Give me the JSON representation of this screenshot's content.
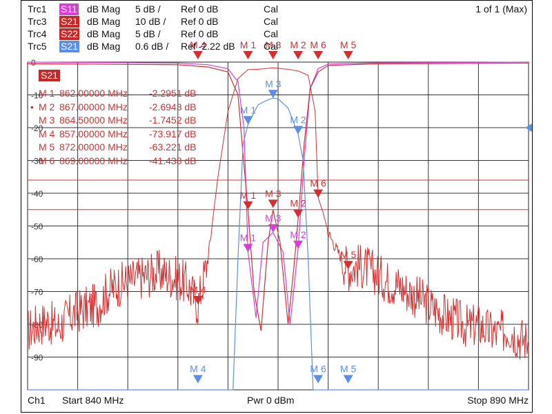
{
  "traces": [
    {
      "id": "Trc1",
      "param": "S11",
      "format": "dB Mag",
      "scale": "5 dB /",
      "ref": "Ref 0 dB",
      "cal": "Cal",
      "color": "#d63fd6"
    },
    {
      "id": "Trc3",
      "param": "S21",
      "format": "dB Mag",
      "scale": "10 dB /",
      "ref": "Ref 0 dB",
      "cal": "Cal",
      "color": "#c62828"
    },
    {
      "id": "Trc4",
      "param": "S22",
      "format": "dB Mag",
      "scale": "5 dB /",
      "ref": "Ref 0 dB",
      "cal": "Cal",
      "color": "#c62828"
    },
    {
      "id": "Trc5",
      "param": "S21",
      "format": "dB Mag",
      "scale": "0.6 dB /",
      "ref": "Ref -2.22 dB",
      "cal": "Cal",
      "color": "#5b8fe6"
    }
  ],
  "page_indicator": "1 of 1 (Max)",
  "active_trace_badge": "S21",
  "marker_table": [
    {
      "name": "M 1",
      "freq": "862.00000 MHz",
      "value": "-2.2951 dB",
      "active": false
    },
    {
      "name": "M 2",
      "freq": "867.00000 MHz",
      "value": "-2.6943 dB",
      "active": true
    },
    {
      "name": "M 3",
      "freq": "864.50000 MHz",
      "value": "-1.7452 dB",
      "active": false
    },
    {
      "name": "M 4",
      "freq": "857.00000 MHz",
      "value": "-73.917 dB",
      "active": false
    },
    {
      "name": "M 5",
      "freq": "872.00000 MHz",
      "value": "-63.221 dB",
      "active": false
    },
    {
      "name": "M 6",
      "freq": "869.00000 MHz",
      "value": "-41.438 dB",
      "active": false
    }
  ],
  "footer": {
    "channel": "Ch1",
    "start": "Start  840 MHz",
    "power": "Pwr  0 dBm",
    "stop": "Stop  890 MHz"
  },
  "chart_data": {
    "type": "line",
    "xlim": [
      840,
      890
    ],
    "ylim": [
      -100,
      0
    ],
    "grid": true,
    "y_ticks": [
      0,
      -10,
      -20,
      -30,
      -40,
      -50,
      -60,
      -70,
      -80,
      -90
    ],
    "y_tick_labels": [
      "0",
      "-10",
      "-20",
      "-30",
      "-40",
      "-50",
      "-60",
      "-70",
      "-80",
      "-90"
    ],
    "limit_lines_db": [
      -36,
      -45
    ],
    "series": [
      {
        "name": "S21",
        "trace": "Trc3",
        "color": "#d32f2f",
        "points": [
          [
            840,
            -82
          ],
          [
            841,
            -80
          ],
          [
            842,
            -79
          ],
          [
            843,
            -81
          ],
          [
            844,
            -78
          ],
          [
            845,
            -76
          ],
          [
            846,
            -75
          ],
          [
            847,
            -74
          ],
          [
            848,
            -70
          ],
          [
            849,
            -68
          ],
          [
            850,
            -67
          ],
          [
            851,
            -66
          ],
          [
            852,
            -65
          ],
          [
            853,
            -64
          ],
          [
            854,
            -65
          ],
          [
            855,
            -66
          ],
          [
            856,
            -68
          ],
          [
            857,
            -74
          ],
          [
            858,
            -60
          ],
          [
            859,
            -35
          ],
          [
            860,
            -15
          ],
          [
            861,
            -5
          ],
          [
            862,
            -2.3
          ],
          [
            863,
            -2.2
          ],
          [
            864,
            -1.9
          ],
          [
            864.5,
            -1.75
          ],
          [
            865,
            -1.9
          ],
          [
            866,
            -2.2
          ],
          [
            867,
            -2.7
          ],
          [
            868,
            -4
          ],
          [
            868.7,
            -15
          ],
          [
            869,
            -41.4
          ],
          [
            869.5,
            -46
          ],
          [
            870,
            -52
          ],
          [
            871,
            -58
          ],
          [
            872,
            -63.2
          ],
          [
            873,
            -62
          ],
          [
            874,
            -63
          ],
          [
            875,
            -65
          ],
          [
            876,
            -67
          ],
          [
            877,
            -68
          ],
          [
            878,
            -70
          ],
          [
            879,
            -72
          ],
          [
            880,
            -74
          ],
          [
            881,
            -76
          ],
          [
            882,
            -78
          ],
          [
            883,
            -79
          ],
          [
            884,
            -81
          ],
          [
            885,
            -80
          ],
          [
            886,
            -82
          ],
          [
            887,
            -83
          ],
          [
            888,
            -81
          ],
          [
            889,
            -84
          ],
          [
            890,
            -85
          ]
        ]
      },
      {
        "name": "S11",
        "trace": "Trc1",
        "color": "#d63fd6",
        "points": [
          [
            840,
            0
          ],
          [
            855,
            -0.3
          ],
          [
            858,
            -0.8
          ],
          [
            860,
            -2
          ],
          [
            861,
            -6
          ],
          [
            861.6,
            -20
          ],
          [
            862,
            -58
          ],
          [
            862.8,
            -78
          ],
          [
            863.5,
            -55
          ],
          [
            864.5,
            -52
          ],
          [
            865.5,
            -58
          ],
          [
            866.2,
            -80
          ],
          [
            867,
            -57
          ],
          [
            867.6,
            -30
          ],
          [
            868.2,
            -8
          ],
          [
            869,
            -2
          ],
          [
            870,
            -0.6
          ],
          [
            875,
            -0.2
          ],
          [
            890,
            0
          ]
        ]
      },
      {
        "name": "S22",
        "trace": "Trc4",
        "color": "#d32f2f",
        "points": [
          [
            840,
            -0.5
          ],
          [
            855,
            -0.8
          ],
          [
            858,
            -1.5
          ],
          [
            860,
            -3
          ],
          [
            861,
            -10
          ],
          [
            861.5,
            -28
          ],
          [
            862,
            -45
          ],
          [
            862.6,
            -70
          ],
          [
            863.3,
            -82
          ],
          [
            864,
            -55
          ],
          [
            864.5,
            -45
          ],
          [
            865.2,
            -55
          ],
          [
            866,
            -80
          ],
          [
            866.6,
            -62
          ],
          [
            867,
            -48
          ],
          [
            867.6,
            -25
          ],
          [
            868.2,
            -8
          ],
          [
            869,
            -3
          ],
          [
            870,
            -1
          ],
          [
            875,
            -0.5
          ],
          [
            890,
            -0.3
          ]
        ]
      },
      {
        "name": "S21",
        "trace": "Trc5",
        "color": "#5b8fe6",
        "points": [
          [
            840,
            -100
          ],
          [
            860.5,
            -100
          ],
          [
            861,
            -60
          ],
          [
            861.5,
            -25
          ],
          [
            862,
            -19
          ],
          [
            863,
            -13
          ],
          [
            864,
            -11.5
          ],
          [
            864.5,
            -11
          ],
          [
            865,
            -11.2
          ],
          [
            866,
            -14
          ],
          [
            867,
            -22
          ],
          [
            867.5,
            -30
          ],
          [
            868,
            -60
          ],
          [
            868.5,
            -100
          ],
          [
            890,
            -100
          ]
        ]
      }
    ],
    "markers": [
      {
        "label": "M 4",
        "trace": "Trc3",
        "x": 857,
        "y": -73.9
      },
      {
        "label": "M 1",
        "trace": "Trc3",
        "x": 862,
        "y": -45
      },
      {
        "label": "M 3",
        "trace": "Trc3",
        "x": 864.5,
        "y": -44.5
      },
      {
        "label": "M 2",
        "trace": "Trc3",
        "x": 867,
        "y": -47.5
      },
      {
        "label": "M 6",
        "trace": "Trc3",
        "x": 869,
        "y": -41.4
      },
      {
        "label": "M 5",
        "trace": "Trc3",
        "x": 872,
        "y": -63.2
      },
      {
        "label": "M 1",
        "trace": "Trc1",
        "x": 862,
        "y": -58
      },
      {
        "label": "M 3",
        "trace": "Trc1",
        "x": 864.5,
        "y": -52
      },
      {
        "label": "M 2",
        "trace": "Trc1",
        "x": 867,
        "y": -57
      },
      {
        "label": "M 1",
        "trace": "Trc5",
        "x": 862,
        "y": -19
      },
      {
        "label": "M 3",
        "trace": "Trc5",
        "x": 864.5,
        "y": -11
      },
      {
        "label": "M 2",
        "trace": "Trc5",
        "x": 867,
        "y": -22
      },
      {
        "label": "M 4",
        "trace": "Trc5",
        "x": 857,
        "y": -98
      },
      {
        "label": "M 6",
        "trace": "Trc5",
        "x": 869,
        "y": -98
      },
      {
        "label": "M 5",
        "trace": "Trc5",
        "x": 872,
        "y": -98
      },
      {
        "label": "M 4",
        "trace": "Trc4",
        "x": 857,
        "y": 0
      },
      {
        "label": "M 1",
        "trace": "Trc4",
        "x": 862,
        "y": 0
      },
      {
        "label": "M 3",
        "trace": "Trc4",
        "x": 864.5,
        "y": 0
      },
      {
        "label": "M 2",
        "trace": "Trc4",
        "x": 867,
        "y": 0
      },
      {
        "label": "M 6",
        "trace": "Trc4",
        "x": 869,
        "y": 0
      },
      {
        "label": "M 5",
        "trace": "Trc4",
        "x": 872,
        "y": 0
      }
    ]
  }
}
